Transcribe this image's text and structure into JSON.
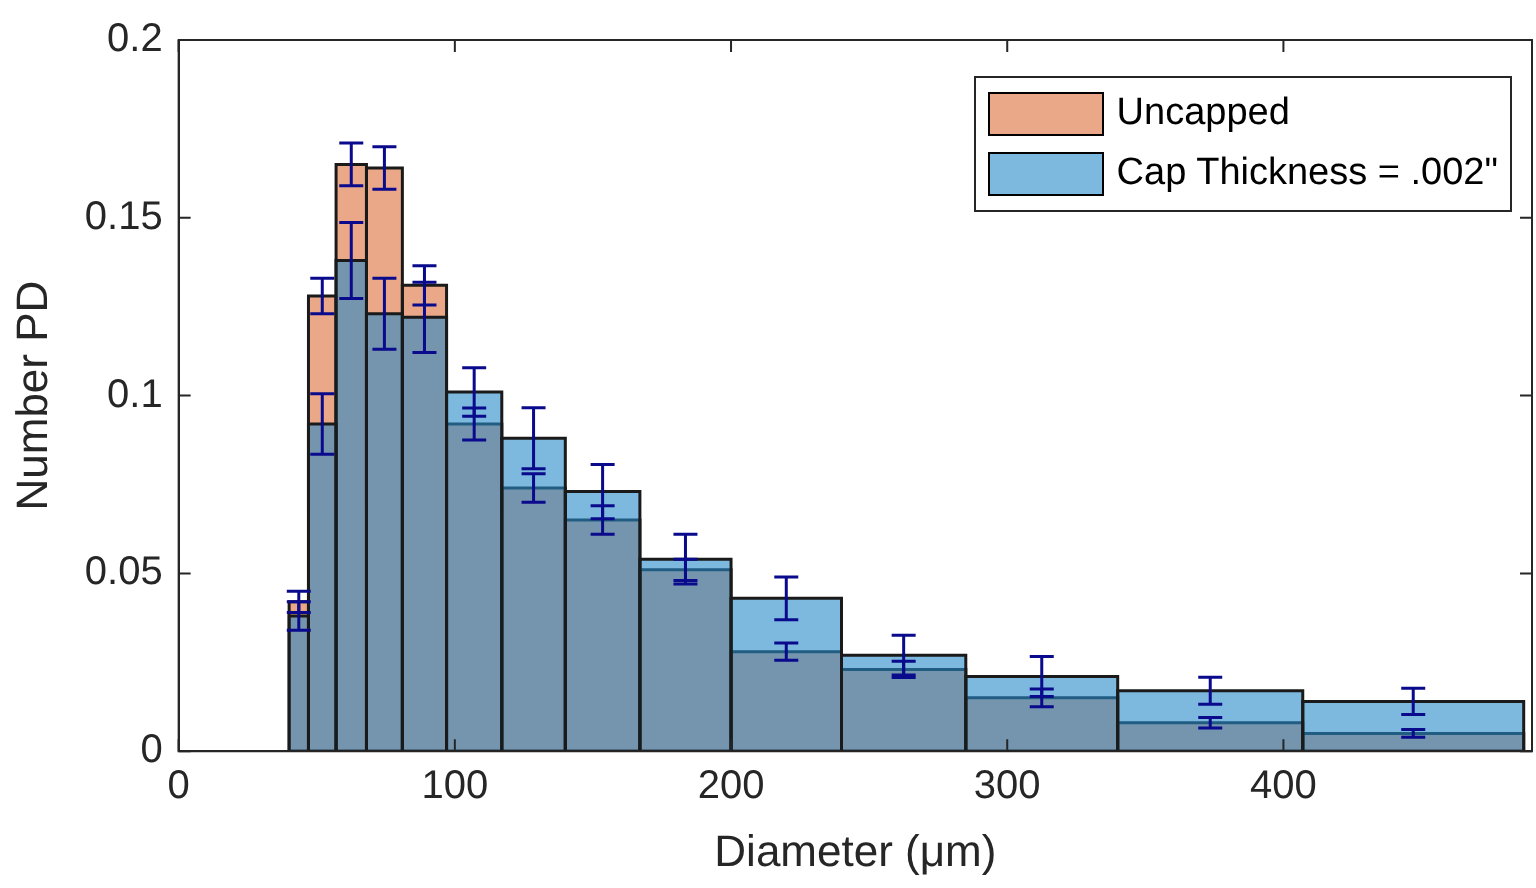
{
  "chart_data": {
    "type": "histogram",
    "xlabel": "Diameter (μm)",
    "ylabel": "Number PD",
    "bins": [
      40,
      47,
      57,
      68,
      81,
      97,
      117,
      140,
      167,
      200,
      240,
      285,
      340,
      407,
      487
    ],
    "series": [
      {
        "name": "Uncapped",
        "color": "#eba889",
        "values": [
          0.042,
          0.128,
          0.165,
          0.164,
          0.131,
          0.092,
          0.074,
          0.065,
          0.051,
          0.028,
          0.023,
          0.015,
          0.008,
          0.005
        ],
        "errors": [
          0.003,
          0.005,
          0.006,
          0.006,
          0.0055,
          0.0045,
          0.004,
          0.004,
          0.003,
          0.0024,
          0.0023,
          0.0025,
          0.0015,
          0.0011
        ]
      },
      {
        "name": "Cap Thickness = .002\"",
        "color": "#7db8de",
        "values": [
          0.038,
          0.092,
          0.138,
          0.123,
          0.122,
          0.101,
          0.088,
          0.073,
          0.054,
          0.043,
          0.027,
          0.021,
          0.017,
          0.014
        ],
        "errors": [
          0.004,
          0.0085,
          0.0107,
          0.01,
          0.0099,
          0.0068,
          0.0086,
          0.0076,
          0.007,
          0.006,
          0.0056,
          0.0056,
          0.0038,
          0.0037
        ]
      }
    ],
    "xlim": [
      0,
      490
    ],
    "ylim": [
      0,
      0.2
    ],
    "xticks": [
      0,
      100,
      200,
      300,
      400
    ],
    "yticks": [
      0,
      0.05,
      0.1,
      0.15,
      0.2
    ],
    "legend": "top right"
  }
}
